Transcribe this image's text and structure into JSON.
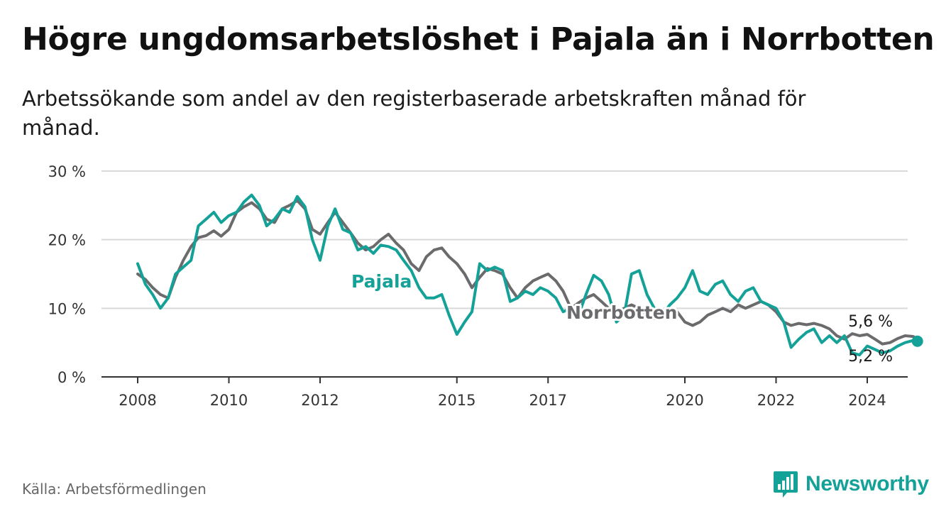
{
  "header": {
    "title": "Högre ungdomsarbetslöshet i Pajala än i Norrbotten",
    "subtitle": "Arbetssökande som andel av den registerbaserade arbetskraften månad för månad."
  },
  "footer": {
    "source": "Källa: Arbetsförmedlingen",
    "brand": "Newsworthy",
    "brand_icon": "newsworthy-logo-icon"
  },
  "colors": {
    "pajala": "#14a197",
    "norrbotten": "#6b6b6d",
    "grid": "#d9d9d9",
    "axis": "#333333"
  },
  "chart_data": {
    "type": "line",
    "title": "Högre ungdomsarbetslöshet i Pajala än i Norrbotten",
    "subtitle": "Arbetssökande som andel av den registerbaserade arbetskraften månad för månad.",
    "xlabel": "",
    "ylabel": "",
    "ylim": [
      0,
      30
    ],
    "yticks": [
      {
        "value": 0,
        "label": "0 %"
      },
      {
        "value": 10,
        "label": "10 %"
      },
      {
        "value": 20,
        "label": "20 %"
      },
      {
        "value": 30,
        "label": "30 %"
      }
    ],
    "xlim": [
      2007.7,
      2024.9
    ],
    "xticks": [
      {
        "value": 2008,
        "label": "2008"
      },
      {
        "value": 2010,
        "label": "2010"
      },
      {
        "value": 2012,
        "label": "2012"
      },
      {
        "value": 2015,
        "label": "2015"
      },
      {
        "value": 2017,
        "label": "2017"
      },
      {
        "value": 2020,
        "label": "2020"
      },
      {
        "value": 2022,
        "label": "2022"
      },
      {
        "value": 2024,
        "label": "2024"
      }
    ],
    "grid": true,
    "series": [
      {
        "name": "Norrbotten",
        "label": "Norrbotten",
        "end_label": "5,6 %",
        "points": [
          [
            2008.0,
            15.0
          ],
          [
            2008.17,
            14.2
          ],
          [
            2008.33,
            13.0
          ],
          [
            2008.5,
            12.0
          ],
          [
            2008.67,
            11.5
          ],
          [
            2008.83,
            14.5
          ],
          [
            2009.0,
            17.0
          ],
          [
            2009.17,
            19.0
          ],
          [
            2009.33,
            20.3
          ],
          [
            2009.5,
            20.6
          ],
          [
            2009.67,
            21.3
          ],
          [
            2009.83,
            20.5
          ],
          [
            2010.0,
            21.5
          ],
          [
            2010.17,
            24.0
          ],
          [
            2010.33,
            24.8
          ],
          [
            2010.5,
            25.4
          ],
          [
            2010.67,
            24.5
          ],
          [
            2010.83,
            23.0
          ],
          [
            2011.0,
            22.5
          ],
          [
            2011.17,
            24.5
          ],
          [
            2011.33,
            25.0
          ],
          [
            2011.5,
            25.7
          ],
          [
            2011.67,
            24.5
          ],
          [
            2011.83,
            21.5
          ],
          [
            2012.0,
            20.8
          ],
          [
            2012.17,
            22.5
          ],
          [
            2012.33,
            24.0
          ],
          [
            2012.5,
            22.5
          ],
          [
            2012.67,
            21.0
          ],
          [
            2012.83,
            19.5
          ],
          [
            2013.0,
            18.5
          ],
          [
            2013.17,
            19.0
          ],
          [
            2013.33,
            20.0
          ],
          [
            2013.5,
            20.8
          ],
          [
            2013.67,
            19.5
          ],
          [
            2013.83,
            18.5
          ],
          [
            2014.0,
            16.5
          ],
          [
            2014.17,
            15.5
          ],
          [
            2014.33,
            17.5
          ],
          [
            2014.5,
            18.5
          ],
          [
            2014.67,
            18.8
          ],
          [
            2014.83,
            17.5
          ],
          [
            2015.0,
            16.5
          ],
          [
            2015.17,
            15.0
          ],
          [
            2015.33,
            13.0
          ],
          [
            2015.5,
            14.5
          ],
          [
            2015.67,
            15.8
          ],
          [
            2015.83,
            15.5
          ],
          [
            2016.0,
            15.0
          ],
          [
            2016.17,
            13.0
          ],
          [
            2016.33,
            11.5
          ],
          [
            2016.5,
            13.0
          ],
          [
            2016.67,
            14.0
          ],
          [
            2016.83,
            14.5
          ],
          [
            2017.0,
            15.0
          ],
          [
            2017.17,
            14.0
          ],
          [
            2017.33,
            12.5
          ],
          [
            2017.5,
            10.0
          ],
          [
            2017.67,
            10.8
          ],
          [
            2017.83,
            11.5
          ],
          [
            2018.0,
            12.0
          ],
          [
            2018.17,
            11.0
          ],
          [
            2018.33,
            10.0
          ],
          [
            2018.5,
            9.5
          ],
          [
            2018.67,
            10.0
          ],
          [
            2018.83,
            10.5
          ],
          [
            2019.0,
            10.0
          ],
          [
            2019.17,
            9.0
          ],
          [
            2019.33,
            8.5
          ],
          [
            2019.5,
            8.5
          ],
          [
            2019.67,
            9.0
          ],
          [
            2019.83,
            9.5
          ],
          [
            2020.0,
            8.0
          ],
          [
            2020.17,
            7.5
          ],
          [
            2020.33,
            8.0
          ],
          [
            2020.5,
            9.0
          ],
          [
            2020.67,
            9.5
          ],
          [
            2020.83,
            10.0
          ],
          [
            2021.0,
            9.5
          ],
          [
            2021.17,
            10.5
          ],
          [
            2021.33,
            10.0
          ],
          [
            2021.5,
            10.5
          ],
          [
            2021.67,
            11.0
          ],
          [
            2021.83,
            10.5
          ],
          [
            2022.0,
            9.5
          ],
          [
            2022.17,
            8.0
          ],
          [
            2022.33,
            7.5
          ],
          [
            2022.5,
            7.8
          ],
          [
            2022.67,
            7.6
          ],
          [
            2022.83,
            7.8
          ],
          [
            2023.0,
            7.5
          ],
          [
            2023.17,
            7.0
          ],
          [
            2023.33,
            6.0
          ],
          [
            2023.5,
            5.5
          ],
          [
            2023.67,
            6.3
          ],
          [
            2023.83,
            6.0
          ],
          [
            2024.0,
            6.2
          ],
          [
            2024.17,
            5.5
          ],
          [
            2024.33,
            4.8
          ],
          [
            2024.5,
            5.0
          ],
          [
            2024.67,
            5.6
          ],
          [
            2024.83,
            6.0
          ],
          [
            2025.0,
            5.9
          ],
          [
            2025.1,
            5.6
          ]
        ]
      },
      {
        "name": "Pajala",
        "label": "Pajala",
        "end_label": "5,2 %",
        "points": [
          [
            2008.0,
            16.5
          ],
          [
            2008.17,
            13.5
          ],
          [
            2008.33,
            12.0
          ],
          [
            2008.5,
            10.0
          ],
          [
            2008.67,
            11.5
          ],
          [
            2008.83,
            15.0
          ],
          [
            2009.0,
            16.0
          ],
          [
            2009.17,
            17.0
          ],
          [
            2009.33,
            22.0
          ],
          [
            2009.5,
            23.0
          ],
          [
            2009.67,
            24.0
          ],
          [
            2009.83,
            22.5
          ],
          [
            2010.0,
            23.5
          ],
          [
            2010.17,
            24.0
          ],
          [
            2010.33,
            25.5
          ],
          [
            2010.5,
            26.5
          ],
          [
            2010.67,
            25.0
          ],
          [
            2010.83,
            22.0
          ],
          [
            2011.0,
            23.0
          ],
          [
            2011.17,
            24.5
          ],
          [
            2011.33,
            24.0
          ],
          [
            2011.5,
            26.3
          ],
          [
            2011.67,
            24.8
          ],
          [
            2011.83,
            20.0
          ],
          [
            2012.0,
            17.0
          ],
          [
            2012.17,
            22.0
          ],
          [
            2012.33,
            24.5
          ],
          [
            2012.5,
            21.5
          ],
          [
            2012.67,
            21.0
          ],
          [
            2012.83,
            18.5
          ],
          [
            2013.0,
            19.0
          ],
          [
            2013.17,
            18.0
          ],
          [
            2013.33,
            19.2
          ],
          [
            2013.5,
            19.0
          ],
          [
            2013.67,
            18.5
          ],
          [
            2013.83,
            17.0
          ],
          [
            2014.0,
            15.5
          ],
          [
            2014.17,
            13.0
          ],
          [
            2014.33,
            11.5
          ],
          [
            2014.5,
            11.5
          ],
          [
            2014.67,
            12.0
          ],
          [
            2014.83,
            9.0
          ],
          [
            2015.0,
            6.2
          ],
          [
            2015.17,
            8.0
          ],
          [
            2015.33,
            9.5
          ],
          [
            2015.5,
            16.5
          ],
          [
            2015.67,
            15.5
          ],
          [
            2015.83,
            16.0
          ],
          [
            2016.0,
            15.5
          ],
          [
            2016.17,
            11.0
          ],
          [
            2016.33,
            11.5
          ],
          [
            2016.5,
            12.5
          ],
          [
            2016.67,
            12.0
          ],
          [
            2016.83,
            13.0
          ],
          [
            2017.0,
            12.5
          ],
          [
            2017.17,
            11.5
          ],
          [
            2017.33,
            9.5
          ],
          [
            2017.5,
            10.0
          ],
          [
            2017.67,
            9.0
          ],
          [
            2017.83,
            12.0
          ],
          [
            2018.0,
            14.8
          ],
          [
            2018.17,
            14.0
          ],
          [
            2018.33,
            12.0
          ],
          [
            2018.5,
            8.0
          ],
          [
            2018.67,
            9.0
          ],
          [
            2018.83,
            15.0
          ],
          [
            2019.0,
            15.5
          ],
          [
            2019.17,
            12.0
          ],
          [
            2019.33,
            10.0
          ],
          [
            2019.5,
            9.0
          ],
          [
            2019.67,
            10.5
          ],
          [
            2019.83,
            11.5
          ],
          [
            2020.0,
            13.0
          ],
          [
            2020.17,
            15.5
          ],
          [
            2020.33,
            12.5
          ],
          [
            2020.5,
            12.0
          ],
          [
            2020.67,
            13.5
          ],
          [
            2020.83,
            14.0
          ],
          [
            2021.0,
            12.0
          ],
          [
            2021.17,
            11.0
          ],
          [
            2021.33,
            12.5
          ],
          [
            2021.5,
            13.0
          ],
          [
            2021.67,
            11.0
          ],
          [
            2021.83,
            10.5
          ],
          [
            2022.0,
            10.0
          ],
          [
            2022.17,
            8.0
          ],
          [
            2022.33,
            4.3
          ],
          [
            2022.5,
            5.5
          ],
          [
            2022.67,
            6.5
          ],
          [
            2022.83,
            7.0
          ],
          [
            2023.0,
            5.0
          ],
          [
            2023.17,
            6.0
          ],
          [
            2023.33,
            5.0
          ],
          [
            2023.5,
            6.0
          ],
          [
            2023.67,
            3.5
          ],
          [
            2023.83,
            3.2
          ],
          [
            2024.0,
            4.5
          ],
          [
            2024.17,
            4.0
          ],
          [
            2024.33,
            3.5
          ],
          [
            2024.5,
            3.8
          ],
          [
            2024.67,
            4.5
          ],
          [
            2024.83,
            5.0
          ],
          [
            2025.0,
            5.3
          ],
          [
            2025.1,
            5.2
          ]
        ]
      }
    ]
  }
}
